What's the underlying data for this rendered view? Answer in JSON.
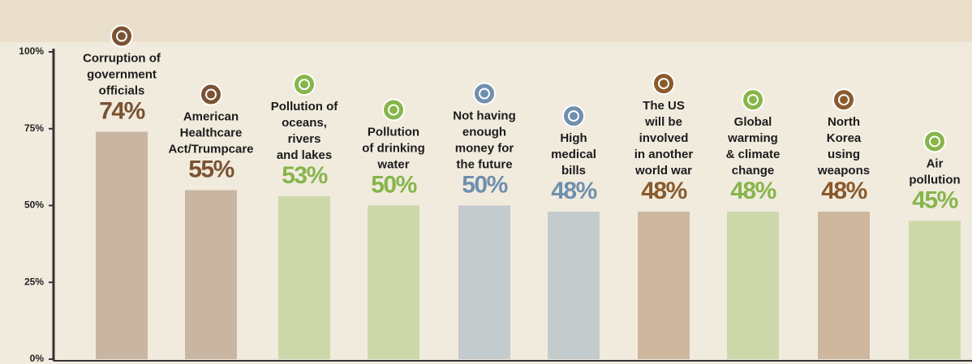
{
  "chart_data": {
    "type": "bar",
    "categories": [
      [
        "Corruption of",
        "government",
        "officials"
      ],
      [
        "American",
        "Healthcare",
        "Act/Trumpcare"
      ],
      [
        "Pollution of",
        "oceans,",
        "rivers",
        "and lakes"
      ],
      [
        "Pollution",
        "of drinking",
        "water"
      ],
      [
        "Not having",
        "enough",
        "money for",
        "the future"
      ],
      [
        "High",
        "medical",
        "bills"
      ],
      [
        "The US",
        "will be",
        "involved",
        "in another",
        "world war"
      ],
      [
        "Global",
        "warming",
        "& climate",
        "change"
      ],
      [
        "North",
        "Korea",
        "using",
        "weapons"
      ],
      [
        "Air",
        "pollution"
      ]
    ],
    "values": [
      74,
      55,
      53,
      50,
      50,
      48,
      48,
      48,
      48,
      45
    ],
    "value_labels": [
      "74%",
      "55%",
      "53%",
      "50%",
      "50%",
      "48%",
      "48%",
      "48%",
      "48%",
      "45%"
    ],
    "colors": [
      "#7b5233",
      "#7b5233",
      "#86b54a",
      "#86b54a",
      "#6f8fae",
      "#6f8fae",
      "#8a5a2c",
      "#86b54a",
      "#8a5a2c",
      "#86b54a"
    ],
    "ylim": [
      0,
      100
    ],
    "yticks": [
      {
        "value": 0,
        "label": "0%"
      },
      {
        "value": 25,
        "label": "25%"
      },
      {
        "value": 50,
        "label": "50%"
      },
      {
        "value": 75,
        "label": "75%"
      },
      {
        "value": 100,
        "label": "100%"
      }
    ],
    "grid": false
  }
}
